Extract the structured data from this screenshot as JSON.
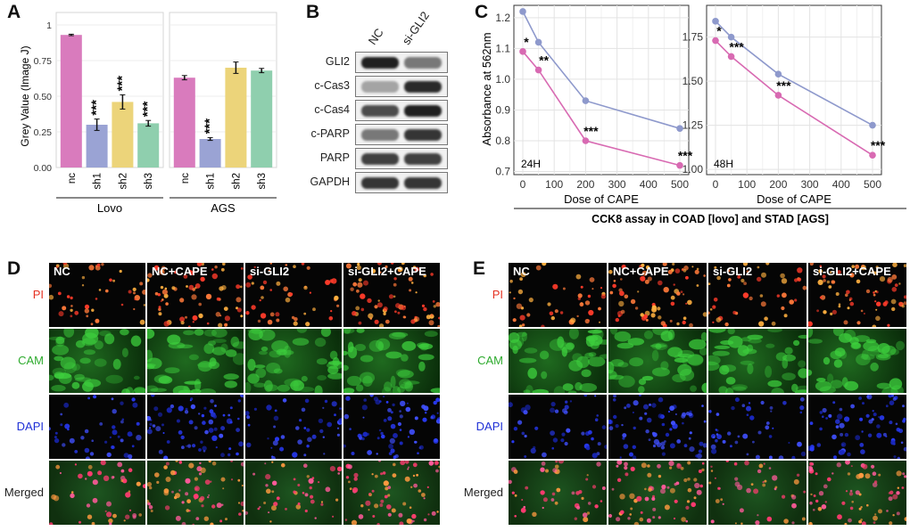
{
  "panels": {
    "a": "A",
    "b": "B",
    "c": "C",
    "d": "D",
    "e": "E"
  },
  "colors": {
    "nc": "#d97bbd",
    "sh1": "#9aa3d4",
    "sh2": "#ecd47a",
    "sh3": "#8fcfae",
    "series_24h_top": "#8e99cc",
    "series_pink": "#d86ab2",
    "pi": "#e53222",
    "cam": "#2eab2e",
    "dapi": "#1e2fd6"
  },
  "chart_data": [
    {
      "type": "bar",
      "ylabel": "Grey Value (Image J)",
      "ylim": [
        0,
        1.0
      ],
      "yticks": [
        "0.00",
        "0.25",
        "0.50",
        "0.75",
        "1"
      ],
      "groups": [
        {
          "name": "Lovo",
          "categories": [
            "nc",
            "sh1",
            "sh2",
            "sh3"
          ],
          "values": [
            0.93,
            0.3,
            0.46,
            0.31
          ],
          "errors": [
            0.005,
            0.04,
            0.05,
            0.02
          ],
          "annotations": [
            "",
            "***",
            "***",
            "***"
          ]
        },
        {
          "name": "AGS",
          "categories": [
            "nc",
            "sh1",
            "sh2",
            "sh3"
          ],
          "values": [
            0.63,
            0.2,
            0.7,
            0.68
          ],
          "errors": [
            0.015,
            0.01,
            0.04,
            0.015
          ],
          "annotations": [
            "",
            "***",
            "",
            ""
          ]
        }
      ]
    },
    {
      "type": "line",
      "ylabel": "Absorbance at 562nm",
      "xlabel": "Dose of CAPE",
      "caption": "CCK8 assay in COAD [lovo] and STAD [AGS]",
      "panels": [
        {
          "label": "24H",
          "x": [
            0,
            50,
            200,
            500
          ],
          "xticks": [
            "0",
            "100",
            "200",
            "300",
            "400",
            "500"
          ],
          "ylim": [
            0.69,
            1.24
          ],
          "yticks": [
            "0.7",
            "0.8",
            "0.9",
            "1.0",
            "1.1",
            "1.2"
          ],
          "series": [
            {
              "values": [
                1.22,
                1.12,
                0.93,
                0.84
              ]
            },
            {
              "values": [
                1.09,
                1.03,
                0.8,
                0.72
              ]
            }
          ],
          "annotations": [
            "*",
            "**",
            "***",
            "***"
          ]
        },
        {
          "label": "48H",
          "x": [
            0,
            50,
            200,
            500
          ],
          "xticks": [
            "0",
            "100",
            "200",
            "300",
            "400",
            "500"
          ],
          "ylim": [
            0.97,
            1.93
          ],
          "yticks": [
            "1.00",
            "1.25",
            "1.50",
            "1.75"
          ],
          "series": [
            {
              "values": [
                1.84,
                1.75,
                1.54,
                1.25
              ]
            },
            {
              "values": [
                1.73,
                1.64,
                1.42,
                1.08
              ]
            }
          ],
          "annotations": [
            "*",
            "***",
            "***",
            "***"
          ]
        }
      ]
    }
  ],
  "western_blot": {
    "columns": [
      "NC",
      "si-GLI2"
    ],
    "rows": [
      {
        "label": "GLI2",
        "nc": 0.95,
        "si": 0.55
      },
      {
        "label": "c-Cas3",
        "nc": 0.35,
        "si": 0.9
      },
      {
        "label": "c-Cas4",
        "nc": 0.75,
        "si": 0.95
      },
      {
        "label": "c-PARP",
        "nc": 0.55,
        "si": 0.85
      },
      {
        "label": "PARP",
        "nc": 0.8,
        "si": 0.8
      },
      {
        "label": "GAPDH",
        "nc": 0.85,
        "si": 0.85
      }
    ]
  },
  "microscopy": {
    "columns": [
      "NC",
      "NC+CAPE",
      "si-GLI2",
      "si-GLI2+CAPE"
    ],
    "rows": [
      "PI",
      "CAM",
      "DAPI",
      "Merged"
    ]
  }
}
